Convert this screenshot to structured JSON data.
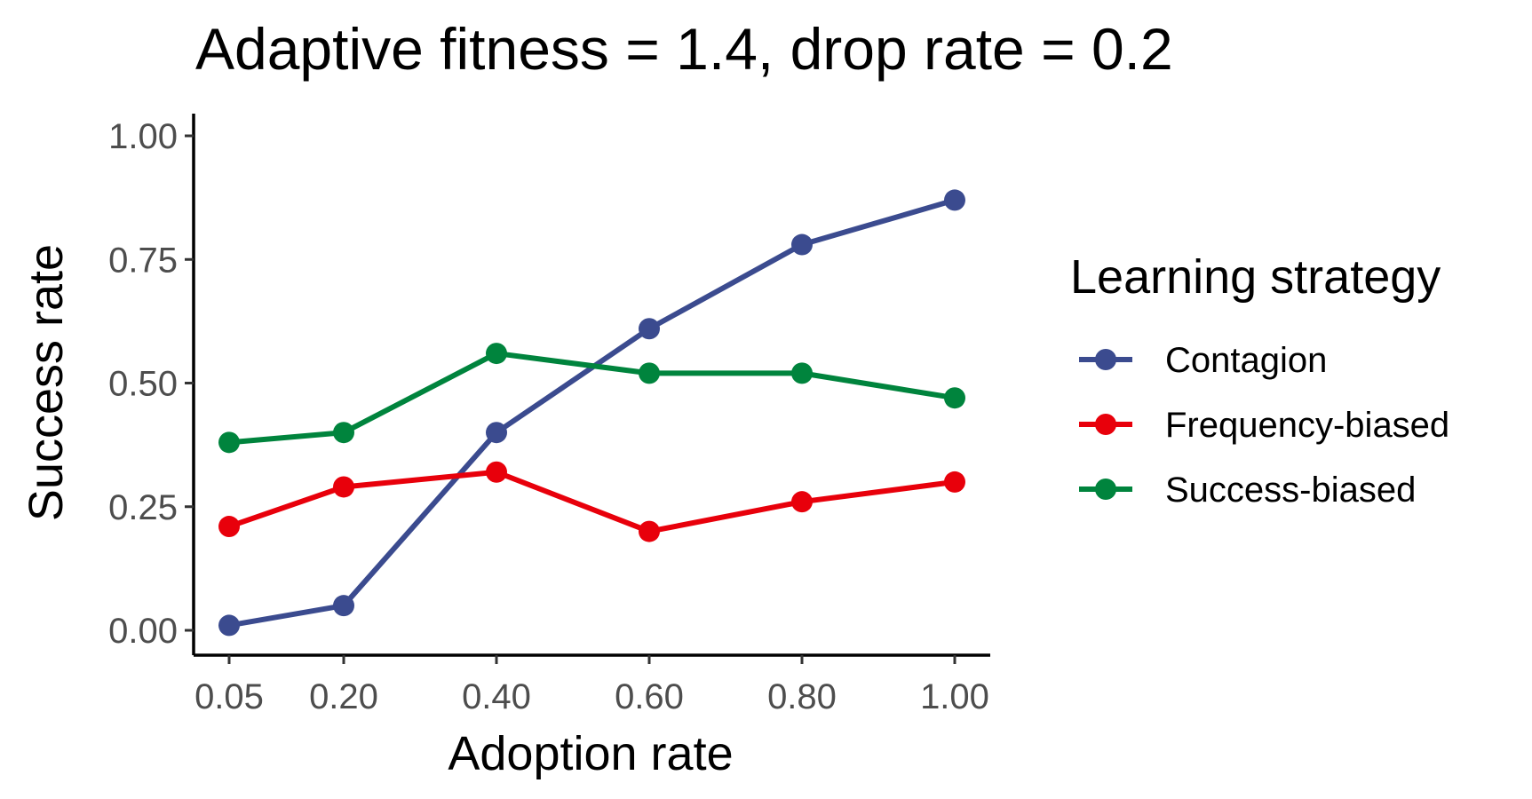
{
  "chart_data": {
    "type": "line",
    "title": "Adaptive fitness = 1.4, drop rate = 0.2",
    "xlabel": "Adoption rate",
    "ylabel": "Success rate",
    "x_tick_labels": [
      "0.05",
      "0.20",
      "0.40",
      "0.60",
      "0.80",
      "1.00"
    ],
    "x": [
      0.05,
      0.2,
      0.4,
      0.6,
      0.8,
      1.0
    ],
    "y_tick_labels": [
      "0.00",
      "0.25",
      "0.50",
      "0.75",
      "1.00"
    ],
    "y_ticks": [
      0,
      0.25,
      0.5,
      0.75,
      1.0
    ],
    "ylim": [
      0,
      1.0
    ],
    "grid": false,
    "legend": {
      "title": "Learning strategy",
      "placement": "right"
    },
    "series": [
      {
        "name": "Contagion",
        "color": "#3b4b8f",
        "values": [
          0.01,
          0.05,
          0.4,
          0.61,
          0.78,
          0.87
        ]
      },
      {
        "name": "Frequency-biased",
        "color": "#e8000b",
        "values": [
          0.21,
          0.29,
          0.32,
          0.2,
          0.26,
          0.3
        ]
      },
      {
        "name": "Success-biased",
        "color": "#00843d",
        "values": [
          0.38,
          0.4,
          0.56,
          0.52,
          0.52,
          0.47
        ]
      }
    ]
  }
}
